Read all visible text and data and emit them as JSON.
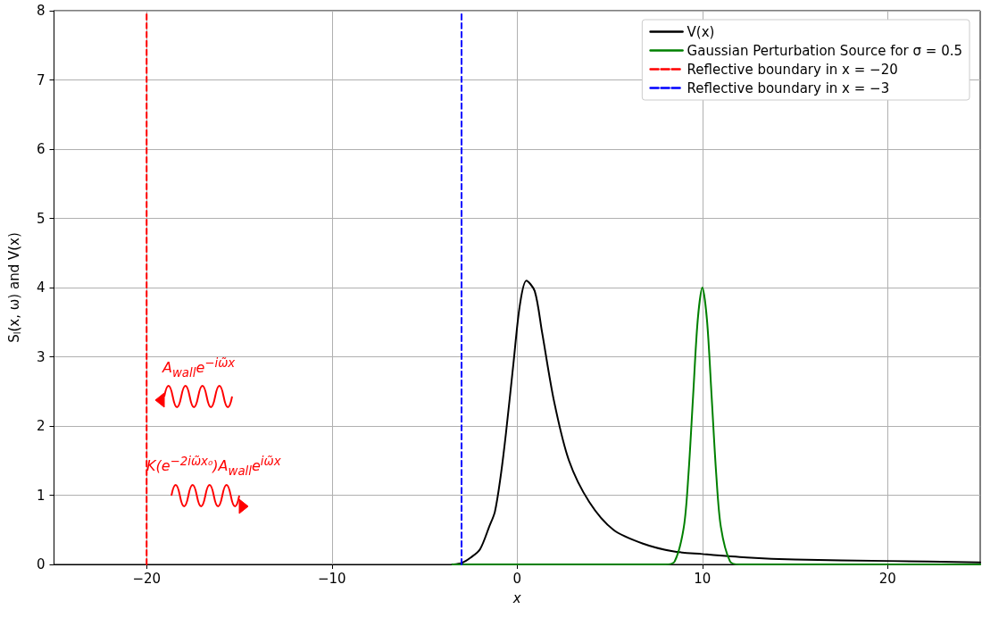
{
  "chart_data": {
    "type": "line",
    "xlabel": "x",
    "ylabel": "S$_{l}$(x, ω) and V(x)",
    "xlim": [
      -25,
      25
    ],
    "ylim": [
      0,
      8
    ],
    "xticks": [
      {
        "value": -20,
        "label": "−20"
      },
      {
        "value": -10,
        "label": "−10"
      },
      0,
      10,
      20
    ],
    "yticks": [
      0,
      1,
      2,
      3,
      4,
      5,
      6,
      7,
      8
    ],
    "grid": true,
    "legend": "top right",
    "marker": "none",
    "line_style": "solid",
    "series": [
      {
        "name": "V(x)",
        "color": "#000000",
        "x": [
          -3.5,
          -3,
          -2.5,
          -2,
          -1.5,
          -1.2,
          -0.9,
          -0.6,
          -0.2,
          0.15,
          0.5,
          0.95,
          1.35,
          2,
          2.8,
          3.9,
          5.2,
          6.8,
          8.4,
          10,
          12.4,
          15,
          20,
          25
        ],
        "values": [
          0,
          0.02,
          0.1,
          0.22,
          0.55,
          0.76,
          1.25,
          1.9,
          2.9,
          3.75,
          4.1,
          3.95,
          3.35,
          2.35,
          1.5,
          0.9,
          0.5,
          0.3,
          0.19,
          0.15,
          0.1,
          0.07,
          0.05,
          0.03
        ]
      },
      {
        "name": "Gaussian Perturbation Source for σ = 0.5",
        "color": "#008000",
        "x": [
          -3.5,
          8,
          8.5,
          9,
          9.25,
          9.5,
          9.75,
          10,
          10.25,
          10.5,
          10.75,
          11,
          11.5,
          12,
          25
        ],
        "values": [
          0,
          0,
          0.04,
          0.54,
          1.3,
          2.43,
          3.53,
          4.0,
          3.53,
          2.43,
          1.3,
          0.54,
          0.04,
          0,
          0
        ]
      },
      {
        "name": "Reflective boundary in x = −20",
        "color": "#ff0000",
        "line_style": "dashed",
        "x": [
          -20,
          -20
        ],
        "values": [
          0,
          8
        ]
      },
      {
        "name": "Reflective boundary in x = −3",
        "color": "#0000ff",
        "line_style": "dashed",
        "x": [
          -3,
          -3
        ],
        "values": [
          0,
          8
        ]
      }
    ],
    "annotations": [
      "A$_{wall}$e$^{−iω̃x}$",
      "K(e$^{−2iω̃x₀}$)A$_{wall}$e$^{iω̃x}$"
    ]
  }
}
